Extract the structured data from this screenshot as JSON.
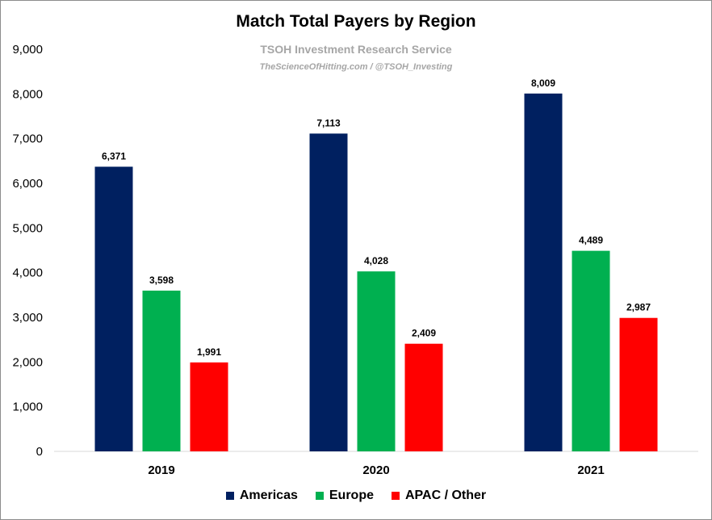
{
  "chart_data": {
    "type": "bar",
    "title": "Match Total Payers by Region",
    "subtitle": "TSOH Investment Research Service",
    "source_line": "TheScienceOfHitting.com / @TSOH_Investing",
    "categories": [
      "2019",
      "2020",
      "2021"
    ],
    "series": [
      {
        "name": "Americas",
        "color": "#002060",
        "values": [
          6371,
          7113,
          8009
        ],
        "labels": [
          "6,371",
          "7,113",
          "8,009"
        ]
      },
      {
        "name": "Europe",
        "color": "#00b050",
        "values": [
          3598,
          4028,
          4489
        ],
        "labels": [
          "3,598",
          "4,028",
          "4,489"
        ]
      },
      {
        "name": "APAC / Other",
        "color": "#ff0000",
        "values": [
          1991,
          2409,
          2987
        ],
        "labels": [
          "1,991",
          "2,409",
          "2,987"
        ]
      }
    ],
    "ylim": [
      0,
      9000
    ],
    "yticks": [
      0,
      1000,
      2000,
      3000,
      4000,
      5000,
      6000,
      7000,
      8000,
      9000
    ],
    "ytick_labels": [
      "0",
      "1,000",
      "2,000",
      "3,000",
      "4,000",
      "5,000",
      "6,000",
      "7,000",
      "8,000",
      "9,000"
    ],
    "xlabel": "",
    "ylabel": "",
    "grid": false,
    "legend_position": "bottom-center"
  }
}
